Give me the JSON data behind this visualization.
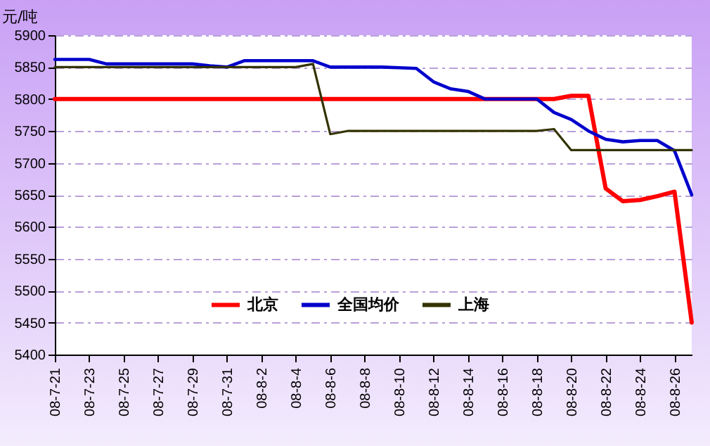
{
  "chart_data": {
    "type": "line",
    "ylabel": "元/吨",
    "categories": [
      "08-7-21",
      null,
      "08-7-23",
      null,
      "08-7-25",
      null,
      "08-7-27",
      null,
      "08-7-29",
      null,
      "08-7-31",
      null,
      "08-8-2",
      null,
      "08-8-4",
      null,
      "08-8-6",
      null,
      "08-8-8",
      null,
      "08-8-10",
      null,
      "08-8-12",
      null,
      "08-8-14",
      null,
      "08-8-16",
      null,
      "08-8-18",
      null,
      "08-8-20",
      null,
      "08-8-22",
      null,
      "08-8-24",
      null,
      "08-8-26",
      null
    ],
    "series": [
      {
        "name": "北京",
        "color": "#ff0000",
        "values": [
          5800,
          5800,
          5800,
          5800,
          5800,
          5800,
          5800,
          5800,
          5800,
          5800,
          5800,
          5800,
          5800,
          5800,
          5800,
          5800,
          5800,
          5800,
          5800,
          5800,
          5800,
          5800,
          5800,
          5800,
          5800,
          5800,
          5800,
          5800,
          5800,
          5800,
          5805,
          5805,
          5660,
          5640,
          5642,
          5648,
          5655,
          5450
        ]
      },
      {
        "name": "全国均价",
        "color": "#0000cc",
        "values": [
          5862,
          5862,
          5862,
          5855,
          5855,
          5855,
          5855,
          5855,
          5855,
          5852,
          5850,
          5860,
          5860,
          5860,
          5860,
          5860,
          5850,
          5850,
          5850,
          5850,
          5849,
          5848,
          5827,
          5816,
          5812,
          5800,
          5800,
          5800,
          5800,
          5779,
          5768,
          5750,
          5737,
          5733,
          5735,
          5735,
          5719,
          5650
        ]
      },
      {
        "name": "上海",
        "color": "#333300",
        "values": [
          5850,
          5850,
          5850,
          5850,
          5850,
          5850,
          5850,
          5850,
          5850,
          5850,
          5850,
          5850,
          5850,
          5850,
          5850,
          5855,
          5745,
          5750,
          5750,
          5750,
          5750,
          5750,
          5750,
          5750,
          5750,
          5750,
          5750,
          5750,
          5750,
          5753,
          5720,
          5720,
          5720,
          5720,
          5720,
          5720,
          5720,
          5720
        ]
      }
    ],
    "ylim": [
      5400,
      5900
    ],
    "yticks": [
      5400,
      5450,
      5500,
      5550,
      5600,
      5650,
      5700,
      5750,
      5800,
      5850,
      5900
    ],
    "grid": "y",
    "legend": "bottom",
    "marker": "none",
    "line_style": "solid"
  }
}
